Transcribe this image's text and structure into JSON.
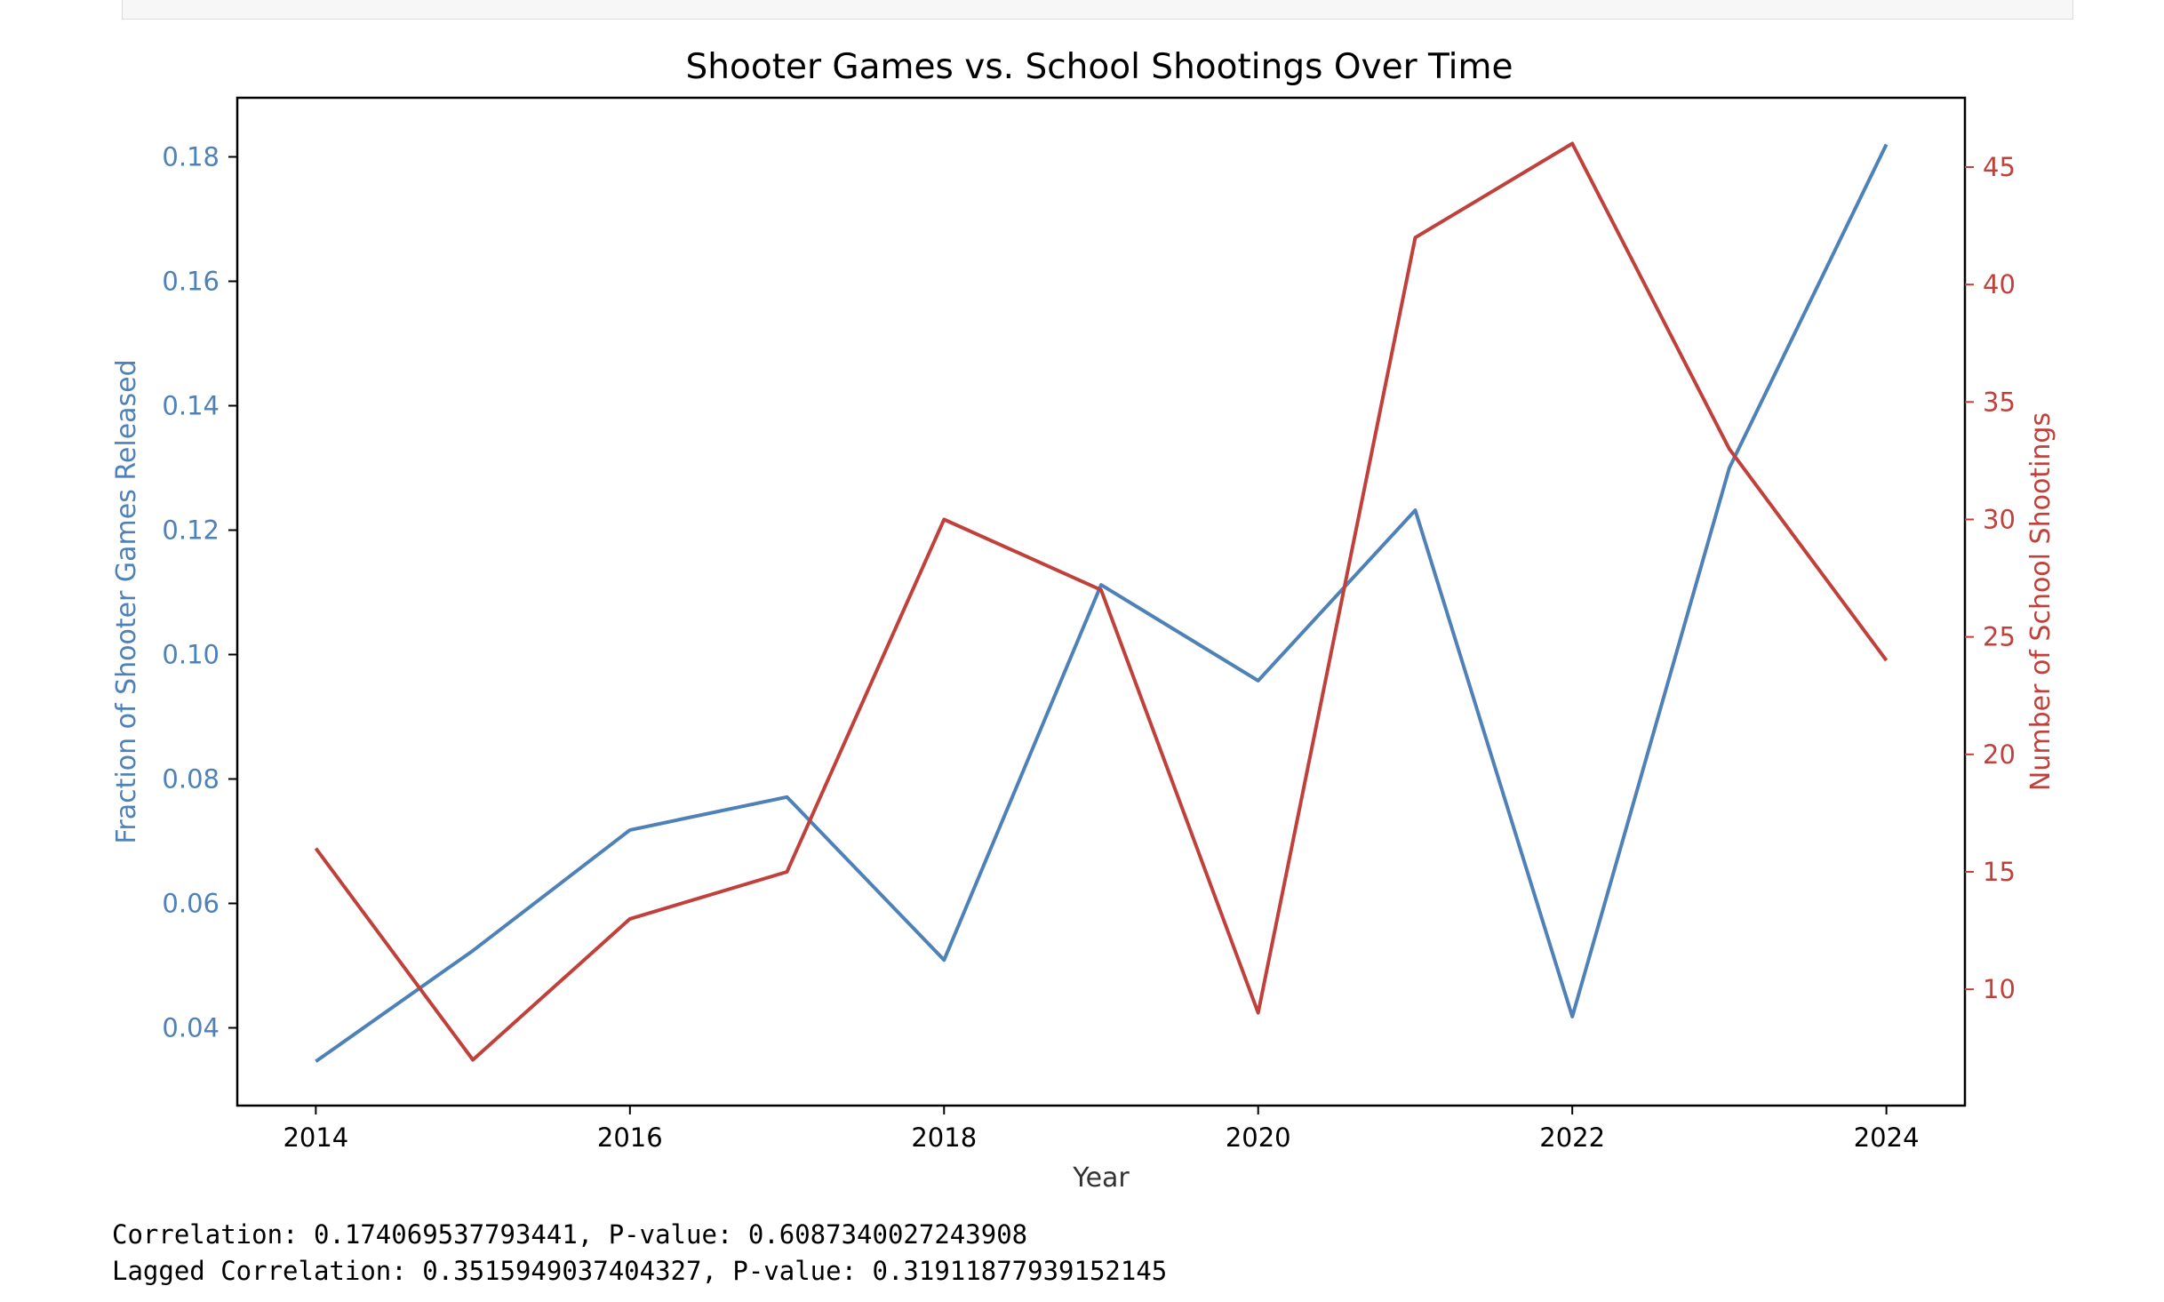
{
  "chart_data": {
    "type": "line",
    "title": "Shooter Games vs. School Shootings Over Time",
    "xlabel": "Year",
    "ylabel_left": "Fraction of Shooter Games Released",
    "ylabel_right": "Number of School Shootings",
    "x": [
      2014,
      2015,
      2016,
      2017,
      2018,
      2019,
      2020,
      2021,
      2022,
      2023,
      2024
    ],
    "xlim": [
      2013.5,
      2024.5
    ],
    "xticks": [
      "2014",
      "2016",
      "2018",
      "2020",
      "2022",
      "2024"
    ],
    "series": [
      {
        "axis": "left",
        "color": "#4f81b9",
        "values": [
          0.0346,
          0.0524,
          0.0718,
          0.0771,
          0.0509,
          0.1112,
          0.0958,
          0.1232,
          0.0418,
          0.13,
          0.182
        ]
      },
      {
        "axis": "right",
        "color": "#c0413b",
        "values": [
          16,
          7,
          13,
          15,
          30,
          27,
          9,
          42,
          46,
          33,
          24
        ]
      }
    ],
    "ylim_left": [
      0.0275,
      0.1895
    ],
    "yticks_left": [
      "0.04",
      "0.06",
      "0.08",
      "0.10",
      "0.12",
      "0.14",
      "0.16",
      "0.18"
    ],
    "ylim_right": [
      5.05,
      47.95
    ],
    "yticks_right": [
      "10",
      "15",
      "20",
      "25",
      "30",
      "35",
      "40",
      "45"
    ],
    "grid": false
  },
  "output": {
    "line1": "Correlation: 0.174069537793441, P-value: 0.6087340027243908",
    "line2": "Lagged Correlation: 0.3515949037404327, P-value: 0.31911877939152145"
  }
}
